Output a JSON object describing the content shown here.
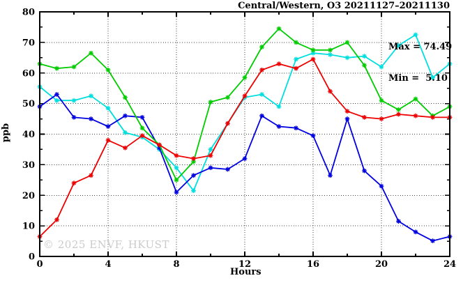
{
  "chart_data": {
    "type": "line",
    "title": "Central/Western, O3 20211127–20211130",
    "annotations": {
      "max": "Max = 74.49",
      "min": "Min =  5.10"
    },
    "xlabel": "Hours",
    "ylabel": "ppb",
    "watermark": "© 2025 ENVF, HKUST",
    "xlim": [
      0,
      24
    ],
    "ylim": [
      0,
      80
    ],
    "x_ticks": [
      0,
      4,
      8,
      12,
      16,
      20,
      24
    ],
    "x_minor_ticks": [
      2,
      6,
      10,
      14,
      18,
      22
    ],
    "y_ticks": [
      0,
      10,
      20,
      30,
      40,
      50,
      60,
      70,
      80
    ],
    "y_minor_ticks": [
      5,
      15,
      25,
      35,
      45,
      55,
      65,
      75
    ],
    "grid": true,
    "legend": "none",
    "marker": "asterisk",
    "x": [
      0,
      1,
      2,
      3,
      4,
      5,
      6,
      7,
      8,
      9,
      10,
      11,
      12,
      13,
      14,
      15,
      16,
      17,
      18,
      19,
      20,
      21,
      22,
      23,
      24
    ],
    "series": [
      {
        "name": "series-cyan",
        "color": "#00dede",
        "values": [
          55.5,
          51,
          51,
          52.5,
          48.5,
          40.5,
          39,
          35,
          29,
          21.5,
          35,
          43.5,
          52,
          53,
          49,
          64.5,
          66.5,
          66,
          65,
          65.5,
          62,
          69,
          72.5,
          58.5,
          63
        ]
      },
      {
        "name": "series-blue",
        "color": "#0000e0",
        "values": [
          49,
          53,
          45.5,
          45,
          42.5,
          46,
          45.5,
          35.5,
          21,
          26.5,
          29,
          28.5,
          32,
          46,
          42.5,
          42,
          39.5,
          26.5,
          45,
          28,
          23,
          11.5,
          8,
          5.1,
          6.5
        ]
      },
      {
        "name": "series-green",
        "color": "#00cc00",
        "values": [
          63,
          61.5,
          62,
          66.5,
          61,
          52,
          42,
          36.5,
          25,
          31,
          50.5,
          52,
          58.5,
          68.5,
          74.5,
          70,
          67.5,
          67.5,
          70,
          62.5,
          51,
          48,
          51.5,
          46,
          49
        ]
      },
      {
        "name": "series-red",
        "color": "#ee0000",
        "values": [
          6.5,
          12,
          24,
          26.5,
          38,
          35.5,
          39.5,
          36.5,
          33,
          32,
          33,
          43.5,
          52.5,
          61,
          63,
          61.5,
          64.5,
          54,
          47.5,
          45.5,
          45,
          46.5,
          46,
          45.5,
          45.5
        ]
      }
    ]
  }
}
